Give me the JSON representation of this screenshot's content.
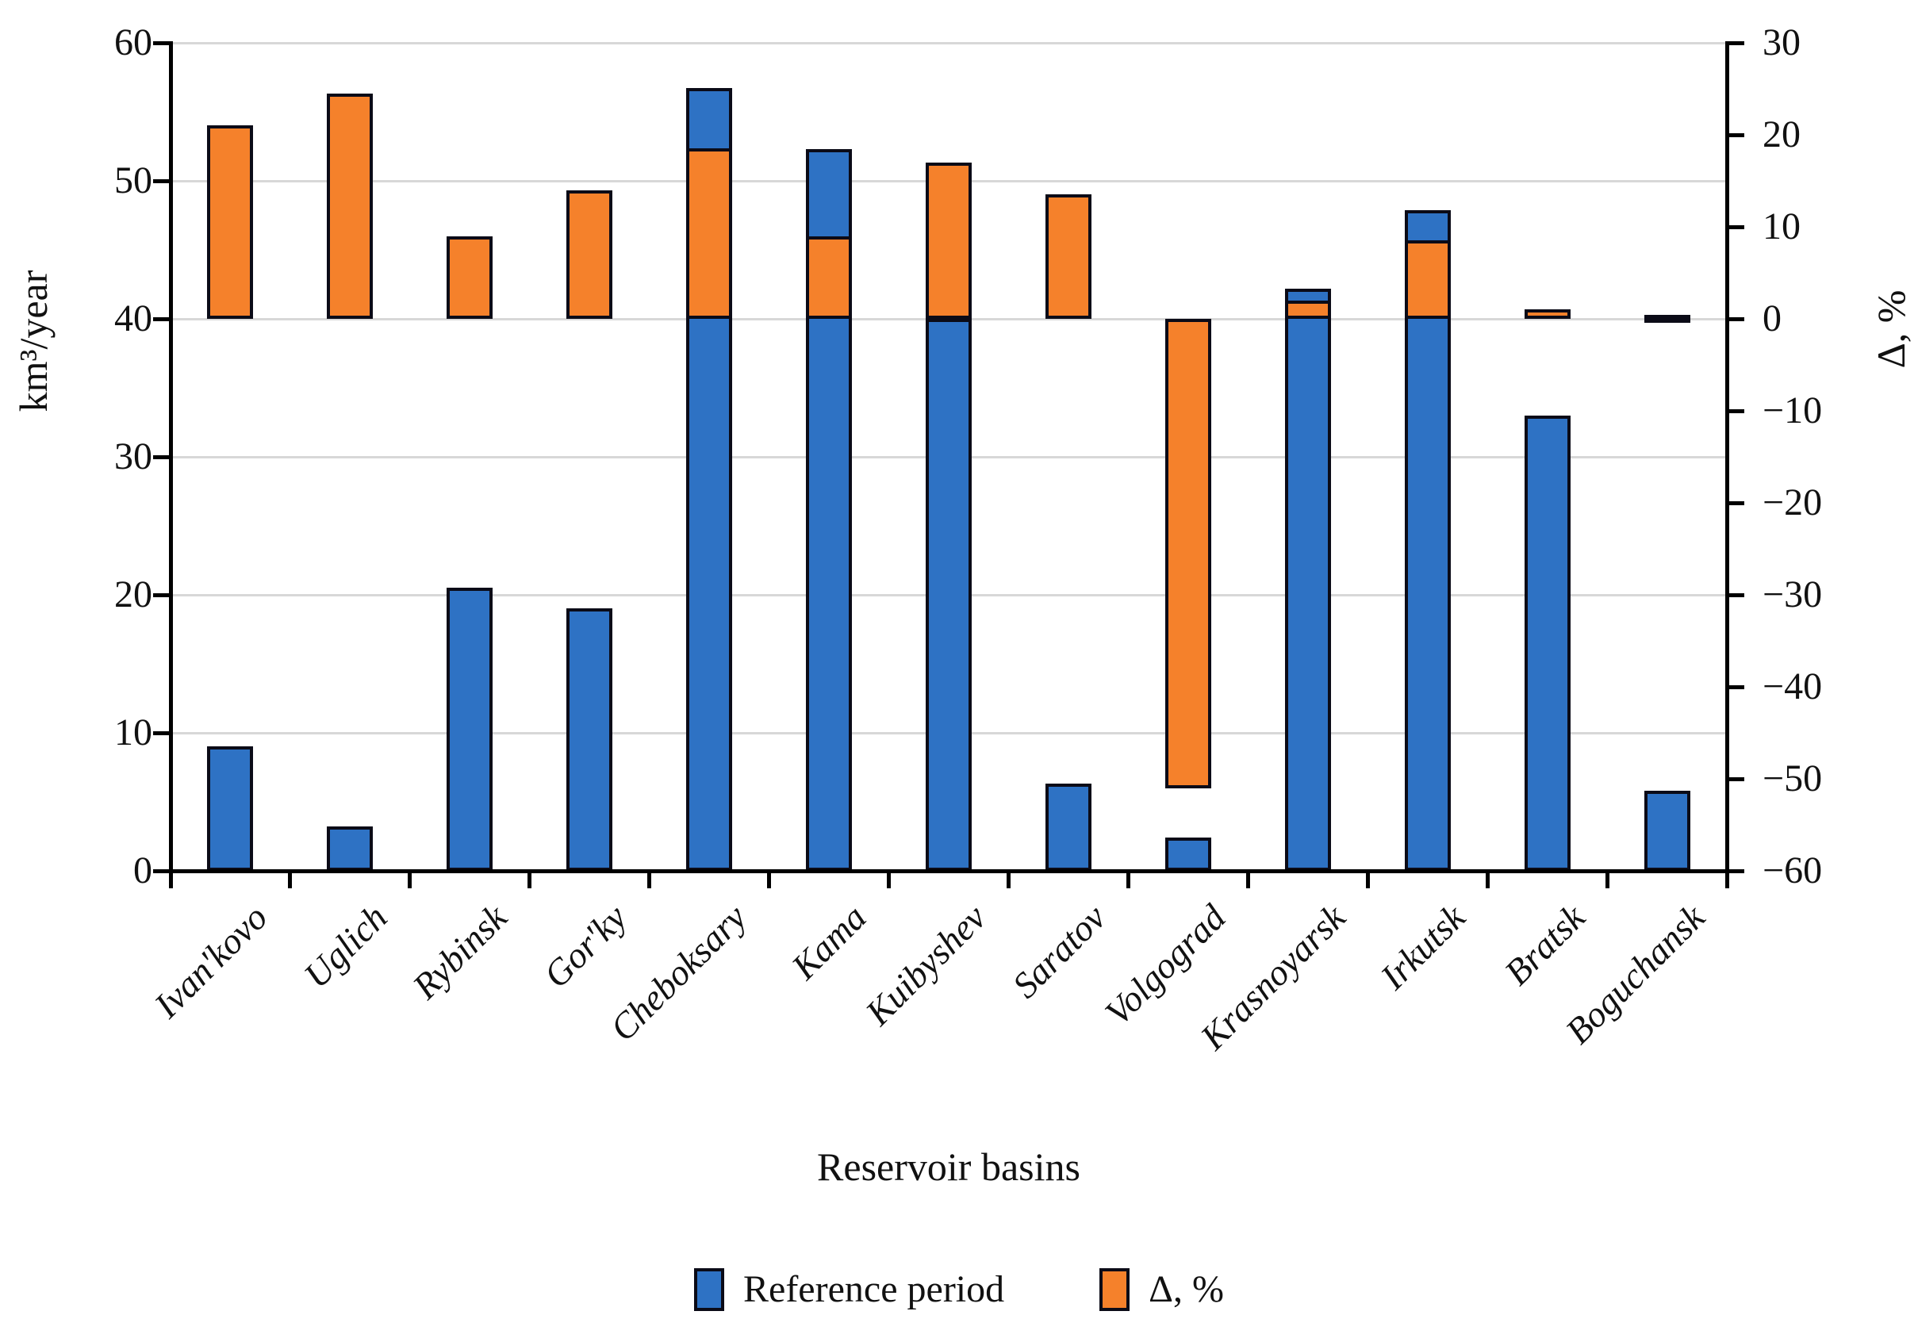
{
  "chart_data": {
    "type": "bar",
    "title": "",
    "categories": [
      "Ivan'kovo",
      "Uglich",
      "Rybinsk",
      "Gor'ky",
      "Cheboksary",
      "Kama",
      "Kuibyshev",
      "Saratov",
      "Volgograd",
      "Krasnoyarsk",
      "Irkutsk",
      "Bratsk",
      "Boguchansk"
    ],
    "series": [
      {
        "name": "Reference period",
        "axis": "left",
        "color": "#2e72c4",
        "values": [
          9,
          3.2,
          20.5,
          19,
          56.7,
          52.3,
          40,
          6.3,
          2.4,
          42.2,
          47.9,
          33,
          5.8
        ]
      },
      {
        "name": "Δ, %",
        "axis": "right",
        "color": "#f5812b",
        "values": [
          21,
          24.5,
          9,
          14,
          18.5,
          9,
          17,
          13.5,
          -51,
          2,
          8.5,
          1,
          0
        ]
      }
    ],
    "left_axis": {
      "label": "km³/year",
      "min": 0,
      "max": 60,
      "tick_labels": [
        "60",
        "50",
        "40",
        "30",
        "20",
        "10",
        "0"
      ],
      "tick_values": [
        60,
        50,
        40,
        30,
        20,
        10,
        0
      ]
    },
    "right_axis": {
      "label": "Δ, %",
      "min": -60,
      "max": 30,
      "tick_labels": [
        "30",
        "20",
        "10",
        "0",
        "−10",
        "−20",
        "−30",
        "−40",
        "−50",
        "−60"
      ],
      "tick_values": [
        30,
        20,
        10,
        0,
        -10,
        -20,
        -30,
        -40,
        -50,
        -60
      ]
    },
    "xlabel": "Reservoir basins",
    "grid": true,
    "gridline_values": [
      60,
      50,
      40,
      30,
      20,
      10
    ],
    "legend_position": "bottom",
    "zero_marker_category": "Boguchansk",
    "colors": {
      "bar_border": "#0b0b17",
      "gridline": "#d8d8d8",
      "axis": "#000000",
      "text": "#111111"
    }
  },
  "legend": {
    "items": [
      {
        "label": "Reference period",
        "color": "#2e72c4"
      },
      {
        "label": "Δ, %",
        "color": "#f5812b"
      }
    ]
  }
}
